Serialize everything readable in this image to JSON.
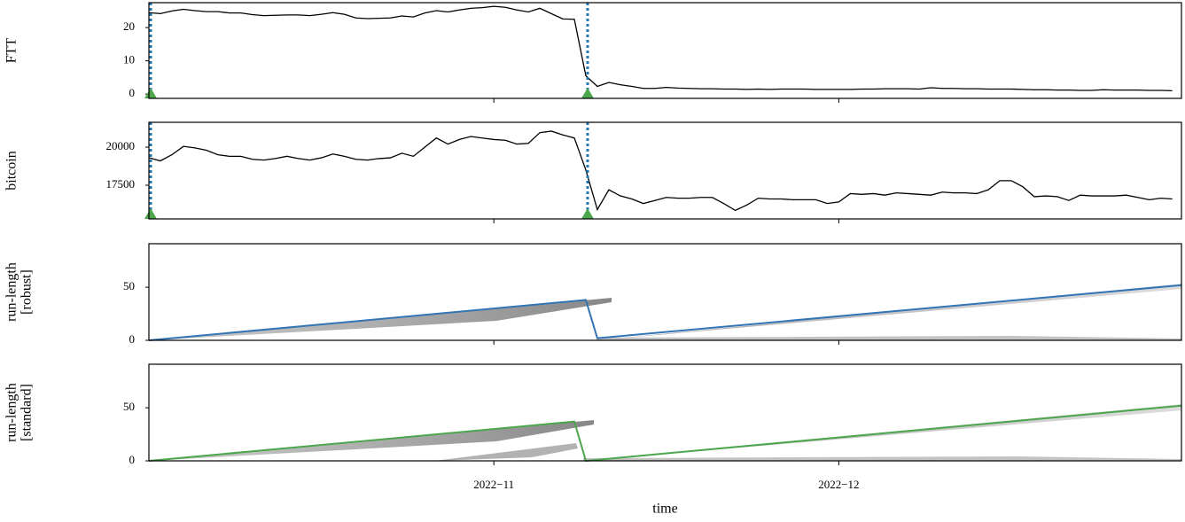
{
  "chart_data": [
    {
      "type": "line",
      "ylabel": [
        "FTT"
      ],
      "xlim": [
        0,
        89.8
      ],
      "ylim": [
        -1.3,
        27.5
      ],
      "yticks": [
        0,
        10,
        20
      ],
      "changepoints": [
        0,
        38
      ],
      "series": [
        {
          "color": "#000000",
          "x": [
            0,
            1,
            2,
            3,
            4,
            5,
            6,
            7,
            8,
            9,
            10,
            11,
            12,
            13,
            14,
            15,
            16,
            17,
            18,
            19,
            20,
            21,
            22,
            23,
            24,
            25,
            26,
            27,
            28,
            29,
            30,
            31,
            32,
            33,
            34,
            35,
            36,
            37,
            38,
            39,
            40,
            41,
            42,
            43,
            44,
            45,
            46,
            47,
            48,
            49,
            50,
            51,
            52,
            53,
            54,
            55,
            56,
            57,
            58,
            59,
            60,
            61,
            62,
            63,
            64,
            65,
            66,
            67,
            68,
            69,
            70,
            71,
            72,
            73,
            74,
            75,
            76,
            77,
            78,
            79,
            80,
            81,
            82,
            83,
            84,
            85,
            86,
            87,
            88,
            89
          ],
          "values": [
            24.5,
            24.2,
            25,
            25.5,
            25.1,
            24.8,
            24.8,
            24.4,
            24.4,
            23.9,
            23.6,
            23.7,
            23.8,
            23.8,
            23.6,
            24,
            24.5,
            24,
            22.9,
            22.7,
            22.8,
            22.9,
            23.5,
            23.2,
            24.4,
            25.1,
            24.7,
            25.3,
            25.8,
            26,
            26.4,
            26.1,
            25.3,
            24.7,
            25.8,
            24.2,
            22.6,
            22.5,
            5.5,
            2.3,
            3.5,
            2.8,
            2.3,
            1.7,
            1.7,
            2,
            1.8,
            1.7,
            1.6,
            1.6,
            1.5,
            1.5,
            1.4,
            1.5,
            1.4,
            1.5,
            1.5,
            1.5,
            1.4,
            1.4,
            1.4,
            1.4,
            1.5,
            1.5,
            1.6,
            1.6,
            1.6,
            1.5,
            1.9,
            1.7,
            1.7,
            1.6,
            1.6,
            1.5,
            1.5,
            1.5,
            1.4,
            1.3,
            1.3,
            1.2,
            1.2,
            1.1,
            1.1,
            1.3,
            1.2,
            1.2,
            1.2,
            1.1,
            1.1,
            1.0
          ]
        }
      ]
    },
    {
      "type": "line",
      "ylabel": [
        "bitcoin"
      ],
      "xlim": [
        0,
        89.8
      ],
      "ylim": [
        15290,
        21630
      ],
      "yticks": [
        17500,
        20000
      ],
      "changepoints": [
        0,
        38
      ],
      "series": [
        {
          "color": "#000000",
          "x": [
            0,
            1,
            2,
            3,
            4,
            5,
            6,
            7,
            8,
            9,
            10,
            11,
            12,
            13,
            14,
            15,
            16,
            17,
            18,
            19,
            20,
            21,
            22,
            23,
            24,
            25,
            26,
            27,
            28,
            29,
            30,
            31,
            32,
            33,
            34,
            35,
            36,
            37,
            38,
            39,
            40,
            41,
            42,
            43,
            44,
            45,
            46,
            47,
            48,
            49,
            50,
            51,
            52,
            53,
            54,
            55,
            56,
            57,
            58,
            59,
            60,
            61,
            62,
            63,
            64,
            65,
            66,
            67,
            68,
            69,
            70,
            71,
            72,
            73,
            74,
            75,
            76,
            77,
            78,
            79,
            80,
            81,
            82,
            83,
            84,
            85,
            86,
            87,
            88,
            89
          ],
          "values": [
            19300,
            19100,
            19500,
            20050,
            19950,
            19800,
            19500,
            19400,
            19400,
            19200,
            19150,
            19250,
            19400,
            19250,
            19150,
            19300,
            19550,
            19400,
            19200,
            19150,
            19250,
            19300,
            19600,
            19400,
            20000,
            20600,
            20200,
            20500,
            20700,
            20600,
            20500,
            20450,
            20200,
            20250,
            20950,
            21050,
            20800,
            20600,
            18500,
            15900,
            17200,
            16800,
            16600,
            16300,
            16500,
            16700,
            16650,
            16650,
            16700,
            16700,
            16300,
            15850,
            16200,
            16650,
            16600,
            16600,
            16550,
            16550,
            16550,
            16300,
            16400,
            16950,
            16900,
            16950,
            16850,
            17000,
            16950,
            16900,
            16850,
            17050,
            17000,
            17000,
            16950,
            17200,
            17800,
            17800,
            17400,
            16750,
            16800,
            16750,
            16500,
            16850,
            16800,
            16800,
            16800,
            16850,
            16700,
            16550,
            16650,
            16600
          ]
        }
      ]
    },
    {
      "type": "line",
      "ylabel": [
        "run-length",
        "[robust]"
      ],
      "xlim": [
        0,
        89.8
      ],
      "ylim": [
        0,
        91
      ],
      "yticks": [
        0,
        50
      ],
      "series": [
        {
          "color": "#3274b4",
          "x": [
            0,
            38,
            39,
            89.8
          ],
          "values": [
            0,
            38,
            2,
            52
          ]
        }
      ]
    },
    {
      "type": "line",
      "ylabel": [
        "run-length",
        "[standard]"
      ],
      "xlabel": "time",
      "xlim": [
        0,
        89.8
      ],
      "ylim": [
        0,
        91
      ],
      "yticks": [
        0,
        50
      ],
      "xticks": [
        {
          "value": 30,
          "label": "2022−11"
        },
        {
          "value": 60,
          "label": "2022−12"
        }
      ],
      "series": [
        {
          "color": "#4ca64c",
          "x": [
            0,
            37,
            38,
            89.8
          ],
          "values": [
            0,
            37,
            0,
            52
          ]
        }
      ]
    }
  ]
}
